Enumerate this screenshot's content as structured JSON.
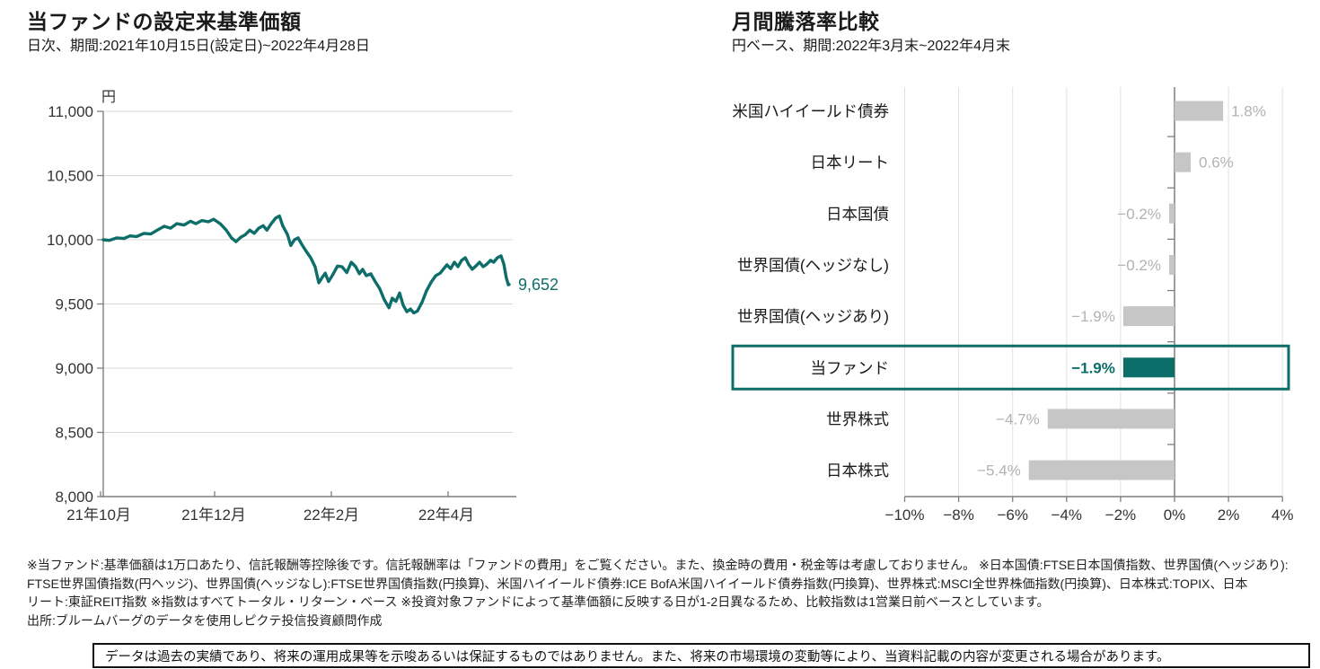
{
  "header_left": {
    "title": "当ファンドの設定来基準価額",
    "subtitle": "日次、期間:2021年10月15日(設定日)~2022年4月28日"
  },
  "header_right": {
    "title": "月間騰落率比較",
    "subtitle": "円ベース、期間:2022年3月末~2022年4月末"
  },
  "colors": {
    "accent_teal": "#0d6e69",
    "bar_gray": "#c6c6c6",
    "value_label_gray": "#b2b2b2",
    "axis_gray": "#7f7f7f",
    "grid_gray_left": "#d9d9d9",
    "grid_gray_right": "#e0e0e0",
    "text_dark": "#1a1a1a",
    "tick_text": "#333333"
  },
  "chart_data": [
    {
      "type": "line",
      "title": "当ファンドの設定来基準価額",
      "subtitle": "日次、期間:2021年10月15日(設定日)~2022年4月28日",
      "ylabel": "円",
      "ylim": [
        8000,
        11000
      ],
      "ytick_values": [
        11000,
        10500,
        10000,
        9500,
        9000,
        8500,
        8000
      ],
      "ytick_labels": [
        "11,000",
        "10,500",
        "10,000",
        "9,500",
        "9,000",
        "8,500",
        "8,000"
      ],
      "xtick_labels": [
        "21年10月",
        "21年12月",
        "22年2月",
        "22年4月"
      ],
      "grid": true,
      "legend": "none",
      "line_color": "#0d6e69",
      "end_value": 9652,
      "end_label": "9,652",
      "series": [
        {
          "name": "当ファンド",
          "points": [
            [
              0,
              10000
            ],
            [
              0.015,
              9995
            ],
            [
              0.033,
              10015
            ],
            [
              0.051,
              10010
            ],
            [
              0.066,
              10030
            ],
            [
              0.082,
              10025
            ],
            [
              0.1,
              10050
            ],
            [
              0.117,
              10045
            ],
            [
              0.133,
              10075
            ],
            [
              0.15,
              10105
            ],
            [
              0.166,
              10090
            ],
            [
              0.181,
              10125
            ],
            [
              0.199,
              10115
            ],
            [
              0.215,
              10145
            ],
            [
              0.228,
              10125
            ],
            [
              0.243,
              10150
            ],
            [
              0.259,
              10140
            ],
            [
              0.272,
              10160
            ],
            [
              0.288,
              10125
            ],
            [
              0.303,
              10075
            ],
            [
              0.316,
              10015
            ],
            [
              0.327,
              9985
            ],
            [
              0.339,
              10020
            ],
            [
              0.35,
              10040
            ],
            [
              0.361,
              10075
            ],
            [
              0.372,
              10050
            ],
            [
              0.383,
              10090
            ],
            [
              0.394,
              10110
            ],
            [
              0.403,
              10075
            ],
            [
              0.414,
              10125
            ],
            [
              0.425,
              10170
            ],
            [
              0.434,
              10185
            ],
            [
              0.442,
              10110
            ],
            [
              0.454,
              10040
            ],
            [
              0.462,
              9955
            ],
            [
              0.471,
              10000
            ],
            [
              0.48,
              10015
            ],
            [
              0.489,
              9965
            ],
            [
              0.5,
              9910
            ],
            [
              0.511,
              9860
            ],
            [
              0.522,
              9790
            ],
            [
              0.531,
              9665
            ],
            [
              0.538,
              9700
            ],
            [
              0.547,
              9740
            ],
            [
              0.555,
              9675
            ],
            [
              0.566,
              9730
            ],
            [
              0.577,
              9795
            ],
            [
              0.588,
              9790
            ],
            [
              0.6,
              9745
            ],
            [
              0.611,
              9825
            ],
            [
              0.622,
              9790
            ],
            [
              0.631,
              9735
            ],
            [
              0.639,
              9770
            ],
            [
              0.648,
              9720
            ],
            [
              0.659,
              9735
            ],
            [
              0.67,
              9675
            ],
            [
              0.681,
              9620
            ],
            [
              0.692,
              9535
            ],
            [
              0.704,
              9470
            ],
            [
              0.712,
              9545
            ],
            [
              0.721,
              9520
            ],
            [
              0.73,
              9585
            ],
            [
              0.739,
              9490
            ],
            [
              0.748,
              9440
            ],
            [
              0.757,
              9460
            ],
            [
              0.765,
              9430
            ],
            [
              0.774,
              9445
            ],
            [
              0.785,
              9510
            ],
            [
              0.796,
              9600
            ],
            [
              0.808,
              9670
            ],
            [
              0.819,
              9720
            ],
            [
              0.83,
              9740
            ],
            [
              0.839,
              9775
            ],
            [
              0.847,
              9805
            ],
            [
              0.856,
              9775
            ],
            [
              0.865,
              9825
            ],
            [
              0.874,
              9790
            ],
            [
              0.883,
              9840
            ],
            [
              0.892,
              9860
            ],
            [
              0.9,
              9810
            ],
            [
              0.909,
              9770
            ],
            [
              0.918,
              9795
            ],
            [
              0.927,
              9825
            ],
            [
              0.936,
              9790
            ],
            [
              0.945,
              9810
            ],
            [
              0.954,
              9840
            ],
            [
              0.962,
              9825
            ],
            [
              0.971,
              9860
            ],
            [
              0.98,
              9875
            ],
            [
              0.987,
              9810
            ],
            [
              0.993,
              9705
            ],
            [
              0.998,
              9650
            ],
            [
              1,
              9652
            ]
          ]
        }
      ]
    },
    {
      "type": "bar",
      "orientation": "horizontal",
      "title": "月間騰落率比較",
      "subtitle": "円ベース、期間:2022年3月末~2022年4月末",
      "categories": [
        "米国ハイイールド債券",
        "日本リート",
        "日本国債",
        "世界国債(ヘッジなし)",
        "世界国債(ヘッジあり)",
        "当ファンド",
        "世界株式",
        "日本株式"
      ],
      "values": [
        1.8,
        0.6,
        -0.2,
        -0.2,
        -1.9,
        -1.9,
        -4.7,
        -5.4
      ],
      "value_labels": [
        "1.8%",
        "0.6%",
        "−0.2%",
        "−0.2%",
        "−1.9%",
        "−1.9%",
        "−4.7%",
        "−5.4%"
      ],
      "highlight_index": 5,
      "xlim": [
        -10,
        4
      ],
      "xtick_values": [
        -10,
        -8,
        -6,
        -4,
        -2,
        0,
        2,
        4
      ],
      "xtick_labels": [
        "−10%",
        "−8%",
        "−6%",
        "−4%",
        "−2%",
        "0%",
        "2%",
        "4%"
      ],
      "grid": true,
      "legend": "none",
      "bar_color": "#c6c6c6",
      "highlight_color": "#0d6e69"
    }
  ],
  "footnotes": {
    "line1": "※当ファンド:基準価額は1万口あたり、信託報酬等控除後です。信託報酬率は「ファンドの費用」をご覧ください。また、換金時の費用・税金等は考慮しておりません。 ※日本国債:FTSE日本国債指数、世界国債(ヘッジあり):",
    "line2": "FTSE世界国債指数(円ヘッジ)、世界国債(ヘッジなし):FTSE世界国債指数(円換算)、米国ハイイールド債券:ICE BofA米国ハイイールド債券指数(円換算)、世界株式:MSCI全世界株価指数(円換算)、日本株式:TOPIX、日本",
    "line3": "リート:東証REIT指数 ※指数はすべてトータル・リターン・ベース ※投資対象ファンドによって基準価額に反映する日が1-2日異なるため、比較指数は1営業日前ベースとしています。",
    "source": "出所:ブルームバーグのデータを使用しピクテ投信投資顧問作成"
  },
  "disclaimer": "データは過去の実績であり、将来の運用成果等を示唆あるいは保証するものではありません。また、将来の市場環境の変動等により、当資料記載の内容が変更される場合があります。"
}
